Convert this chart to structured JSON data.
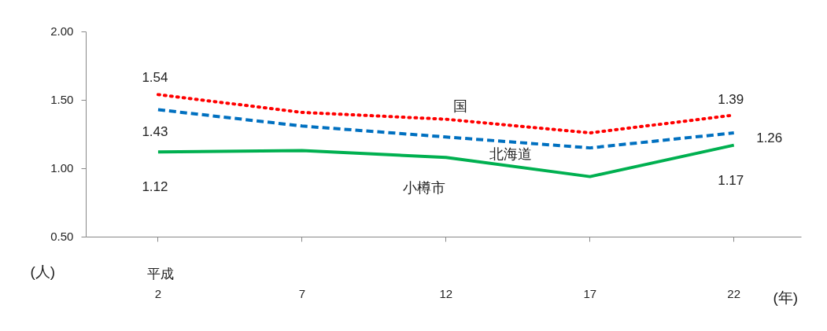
{
  "chart_data": {
    "type": "line",
    "categories": [
      "2",
      "7",
      "12",
      "17",
      "22"
    ],
    "series": [
      {
        "name": "国",
        "color": "#ff0000",
        "line_style": "dotted",
        "values": [
          1.54,
          1.41,
          1.36,
          1.26,
          1.39
        ],
        "value_labels": [
          "1.54",
          null,
          null,
          null,
          "1.39"
        ]
      },
      {
        "name": "北海道",
        "color": "#0070c0",
        "line_style": "dashed",
        "values": [
          1.43,
          1.31,
          1.23,
          1.15,
          1.26
        ],
        "value_labels": [
          "1.43",
          null,
          null,
          null,
          "1.26"
        ]
      },
      {
        "name": "小樽市",
        "color": "#00b050",
        "line_style": "solid",
        "values": [
          1.12,
          1.13,
          1.08,
          0.94,
          1.17
        ],
        "value_labels": [
          "1.12",
          null,
          null,
          null,
          "1.17"
        ]
      }
    ],
    "ylim": [
      0.5,
      2.0
    ],
    "yticks": [
      {
        "value": 0.5,
        "label": "0.50"
      },
      {
        "value": 1.0,
        "label": "1.00"
      },
      {
        "value": 1.5,
        "label": "1.50"
      },
      {
        "value": 2.0,
        "label": "2.00"
      }
    ],
    "xlabel": "(年)",
    "ylabel": "(人)",
    "annotations": [
      "平成"
    ],
    "grid": false,
    "legend": false,
    "marker": "none"
  }
}
